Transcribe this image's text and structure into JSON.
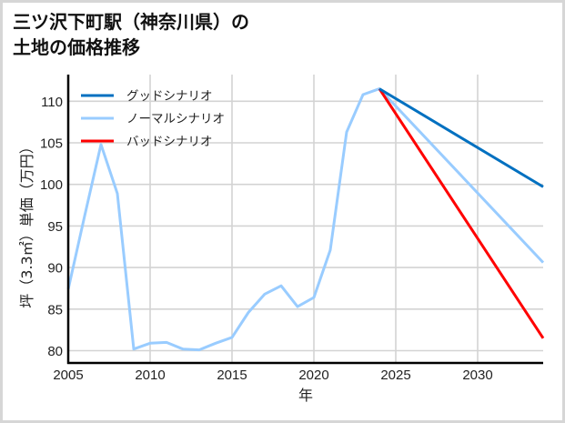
{
  "title": {
    "line1": "三ツ沢下町駅（神奈川県）の",
    "line2": "土地の価格推移"
  },
  "chart_data": {
    "type": "line",
    "title": "三ツ沢下町駅（神奈川県）の土地の価格推移",
    "xlabel": "年",
    "ylabel": "坪（3.3㎡）単価（万円）",
    "xlim": [
      2005,
      2034
    ],
    "ylim": [
      78.5,
      113
    ],
    "xticks": [
      2005,
      2010,
      2015,
      2020,
      2025,
      2030
    ],
    "yticks": [
      80,
      85,
      90,
      95,
      100,
      105,
      110
    ],
    "grid": true,
    "legend_position": "upper left",
    "series": [
      {
        "name": "グッドシナリオ",
        "color": "#0070c0",
        "x": [
          2024,
          2034
        ],
        "values": [
          111.5,
          99.7
        ]
      },
      {
        "name": "ノーマルシナリオ",
        "color": "#99ccff",
        "x": [
          2005,
          2006,
          2007,
          2008,
          2009,
          2010,
          2011,
          2012,
          2013,
          2014,
          2015,
          2016,
          2017,
          2018,
          2019,
          2020,
          2021,
          2022,
          2023,
          2024,
          2034
        ],
        "values": [
          87.4,
          96.2,
          104.8,
          98.9,
          80.2,
          80.9,
          81.0,
          80.2,
          80.1,
          80.9,
          81.6,
          84.6,
          86.8,
          87.8,
          85.3,
          86.4,
          92.1,
          106.3,
          110.8,
          111.5,
          90.6
        ]
      },
      {
        "name": "バッドシナリオ",
        "color": "#ff0000",
        "x": [
          2024,
          2034
        ],
        "values": [
          111.5,
          81.5
        ]
      }
    ]
  },
  "axis": {
    "xlabel": "年",
    "ylabel": "坪（3.3㎡）単価（万円）",
    "xtick_labels": [
      "2005",
      "2010",
      "2015",
      "2020",
      "2025",
      "2030"
    ],
    "ytick_labels": [
      "80",
      "85",
      "90",
      "95",
      "100",
      "105",
      "110"
    ]
  },
  "legend": [
    {
      "label": "グッドシナリオ",
      "color": "#0070c0"
    },
    {
      "label": "ノーマルシナリオ",
      "color": "#99ccff"
    },
    {
      "label": "バッドシナリオ",
      "color": "#ff0000"
    }
  ]
}
